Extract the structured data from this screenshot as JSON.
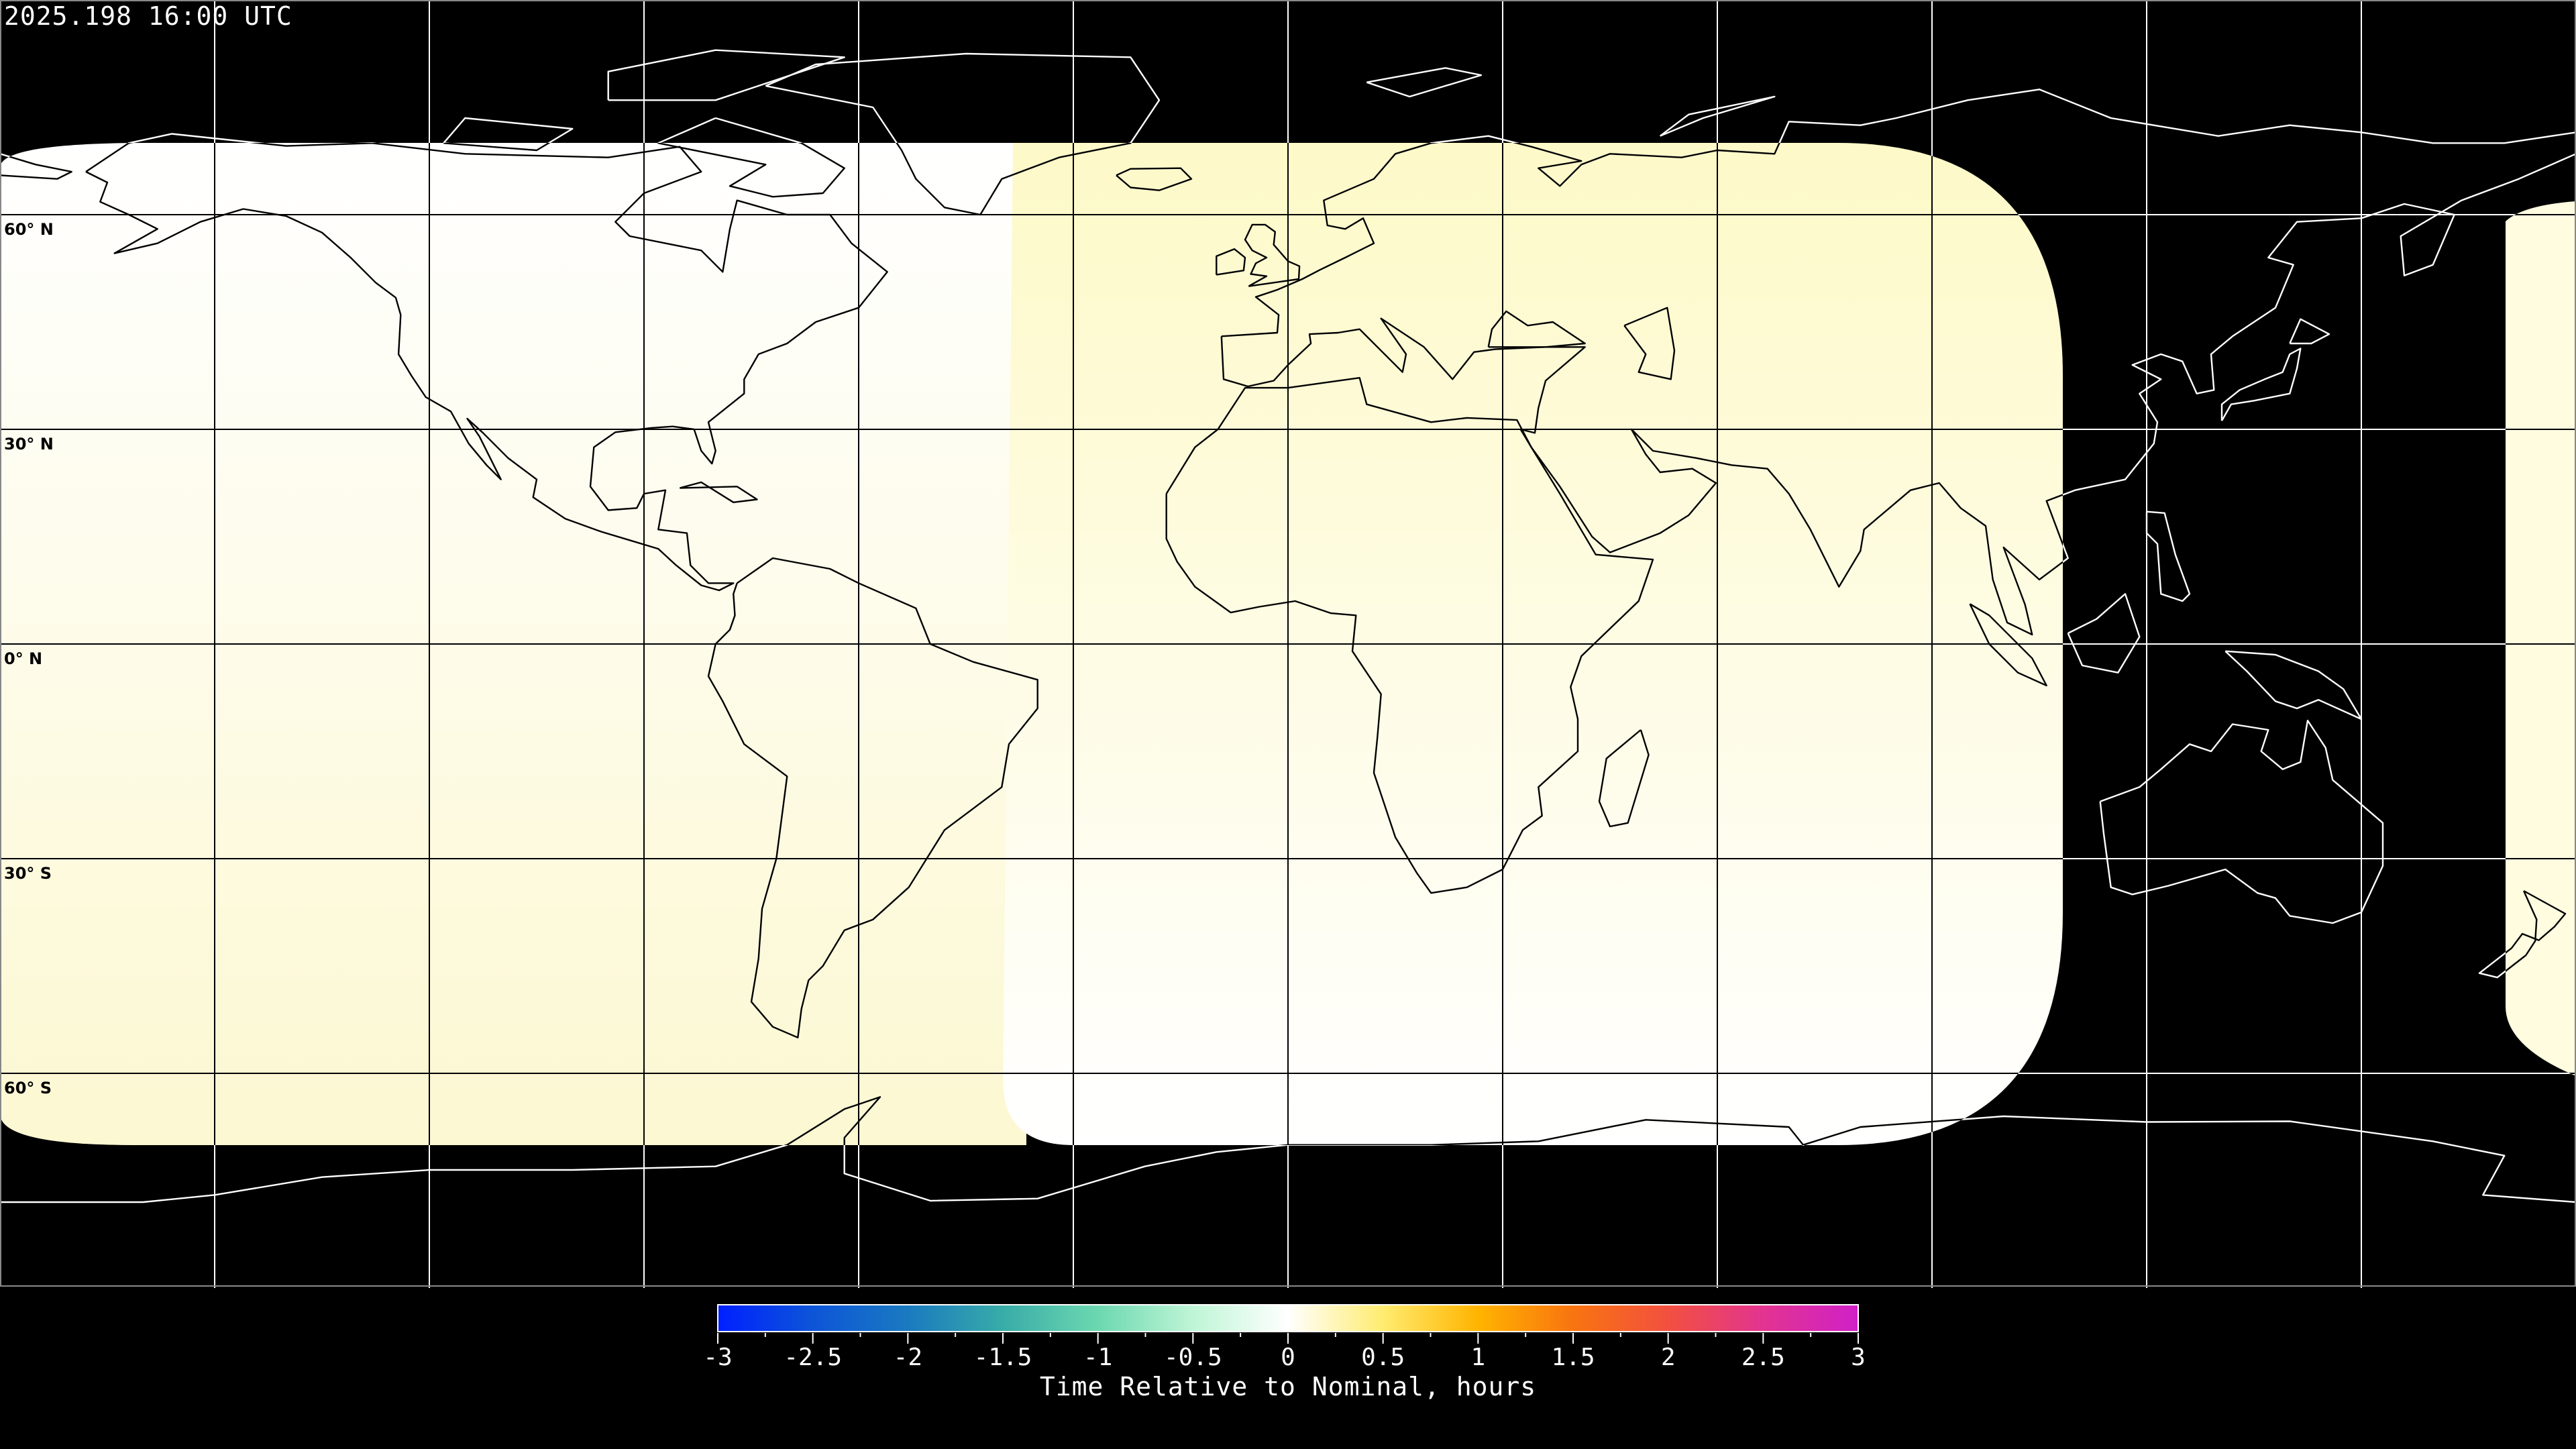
{
  "header": {
    "title": "2025.198 16:00 UTC"
  },
  "map": {
    "projection": "equirectangular",
    "lon_range": [
      -180,
      180
    ],
    "lat_range": [
      -90,
      90
    ],
    "grid_spacing_deg": 30,
    "lat_labels": [
      {
        "lat": 60,
        "text": "60° N"
      },
      {
        "lat": 30,
        "text": "30° N"
      },
      {
        "lat": 0,
        "text": "0° N"
      },
      {
        "lat": -30,
        "text": "30° S"
      },
      {
        "lat": -60,
        "text": "60° S"
      }
    ],
    "no_data_color": "#000000",
    "coverage_colors": {
      "west_top": "#ffffff",
      "west_bottom": "#fcf8d2",
      "central_top": "#fdf9c8",
      "central_bottom": "#ffffff",
      "east_strip": "#fffce0"
    }
  },
  "colorbar": {
    "label": "Time Relative to Nominal, hours",
    "min": -3,
    "max": 3,
    "ticks": [
      "-3",
      "-2.5",
      "-2",
      "-1.5",
      "-1",
      "-0.5",
      "0",
      "0.5",
      "1",
      "1.5",
      "2",
      "2.5",
      "3"
    ],
    "stops": [
      {
        "v": -3,
        "c": "#0020ff"
      },
      {
        "v": -2.5,
        "c": "#0d55d8"
      },
      {
        "v": -2,
        "c": "#1a7ac0"
      },
      {
        "v": -1.5,
        "c": "#38aca8"
      },
      {
        "v": -1,
        "c": "#6cd8b0"
      },
      {
        "v": -0.5,
        "c": "#bff5d6"
      },
      {
        "v": 0,
        "c": "#ffffff"
      },
      {
        "v": 0.5,
        "c": "#ffec70"
      },
      {
        "v": 1,
        "c": "#ffb400"
      },
      {
        "v": 1.5,
        "c": "#f87410"
      },
      {
        "v": 2,
        "c": "#f25040"
      },
      {
        "v": 2.5,
        "c": "#e23490"
      },
      {
        "v": 3,
        "c": "#d020c8"
      }
    ]
  }
}
